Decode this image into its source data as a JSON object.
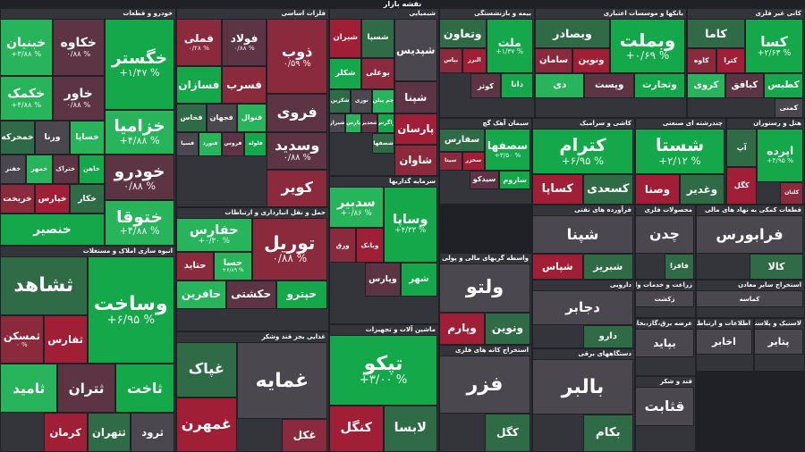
{
  "map_title": "نقشه بازار",
  "colors": {
    "background": "#1f2126",
    "strong_up": "#14a84a",
    "up": "#27b45a",
    "mild_up": "#2f6b47",
    "neutral": "#4a474f",
    "mild_down": "#5c3444",
    "down": "#8b2a3c",
    "strong_down": "#a01f37"
  },
  "chart_data": {
    "type": "heatmap",
    "title": "نقشه بازار",
    "sectors": [
      {
        "name": "خودرو و قطعات",
        "stocks": [
          {
            "symbol": "خگستر",
            "change": "+۱/۴۷ %"
          },
          {
            "symbol": "خکاوه",
            "change": "۰/۸۸ %"
          },
          {
            "symbol": "خبنیان",
            "change": "+۳/۸۸ %"
          },
          {
            "symbol": "خاور",
            "change": "۰/۸۸ %"
          },
          {
            "symbol": "خکمک",
            "change": "+۴/۸۸ %"
          },
          {
            "symbol": "خزامیا",
            "change": "+۴/۸۸ %"
          },
          {
            "symbol": "خساپا",
            "change": ""
          },
          {
            "symbol": "ورنا",
            "change": ""
          },
          {
            "symbol": "خمحرکه",
            "change": ""
          },
          {
            "symbol": "خودرو",
            "change": "۰/۸۸ %"
          },
          {
            "symbol": "ختوقا",
            "change": "+۴/۸۸ %"
          },
          {
            "symbol": "خاهن",
            "change": ""
          },
          {
            "symbol": "ختراک",
            "change": ""
          },
          {
            "symbol": "خمهر",
            "change": ""
          },
          {
            "symbol": "خفنر",
            "change": ""
          },
          {
            "symbol": "خکار",
            "change": ""
          },
          {
            "symbol": "خپارس",
            "change": ""
          },
          {
            "symbol": "خریخت",
            "change": ""
          },
          {
            "symbol": "خنصیر",
            "change": ""
          }
        ]
      },
      {
        "name": "فلزات اساسی",
        "stocks": [
          {
            "symbol": "ذوب",
            "change": "۰/۵۹ %"
          },
          {
            "symbol": "فولاد",
            "change": "۰/۸۸ %"
          },
          {
            "symbol": "فملی",
            "change": "۰/۲۸ %"
          },
          {
            "symbol": "فسرب",
            "change": ""
          },
          {
            "symbol": "فسازان",
            "change": ""
          },
          {
            "symbol": "فروی",
            "change": ""
          },
          {
            "symbol": "فنوال",
            "change": ""
          },
          {
            "symbol": "فجهان",
            "change": ""
          },
          {
            "symbol": "فخاس",
            "change": ""
          },
          {
            "symbol": "وسدید",
            "change": "۰/۸۸ %"
          },
          {
            "symbol": "کویر",
            "change": ""
          },
          {
            "symbol": "فلوله",
            "change": ""
          },
          {
            "symbol": "فروس",
            "change": ""
          },
          {
            "symbol": "فنورد",
            "change": ""
          },
          {
            "symbol": "فسپا",
            "change": ""
          }
        ]
      },
      {
        "name": "شیمیایی",
        "stocks": [
          {
            "symbol": "شپدیس",
            "change": ""
          },
          {
            "symbol": "شسپا",
            "change": ""
          },
          {
            "symbol": "شیران",
            "change": ""
          },
          {
            "symbol": "بوعلی",
            "change": ""
          },
          {
            "symbol": "شکلر",
            "change": ""
          },
          {
            "symbol": "شپنا",
            "change": ""
          },
          {
            "symbol": "جم پیلن",
            "change": ""
          },
          {
            "symbol": "نوری",
            "change": ""
          },
          {
            "symbol": "شکربن",
            "change": ""
          },
          {
            "symbol": "پارسان",
            "change": ""
          },
          {
            "symbol": "شاوان",
            "change": ""
          },
          {
            "symbol": "زاگرس",
            "change": ""
          },
          {
            "symbol": "شغدیر",
            "change": ""
          },
          {
            "symbol": "پارس",
            "change": ""
          },
          {
            "symbol": "شیراز",
            "change": ""
          },
          {
            "symbol": "شصفها",
            "change": ""
          }
        ]
      },
      {
        "name": "بیمه و بازنشستگی",
        "stocks": [
          {
            "symbol": "ملت",
            "change": "+۱/۳۷ %"
          },
          {
            "symbol": "وتعاون",
            "change": ""
          },
          {
            "symbol": "البرز",
            "change": ""
          },
          {
            "symbol": "بپاس",
            "change": ""
          },
          {
            "symbol": "دانا",
            "change": ""
          },
          {
            "symbol": "کوثر",
            "change": ""
          }
        ]
      },
      {
        "name": "بانکها و موسسات اعتباری",
        "stocks": [
          {
            "symbol": "وبملت",
            "change": "+۰/۶۹ %"
          },
          {
            "symbol": "وبصادر",
            "change": ""
          },
          {
            "symbol": "ونوین",
            "change": ""
          },
          {
            "symbol": "سامان",
            "change": ""
          },
          {
            "symbol": "وتجارت",
            "change": ""
          },
          {
            "symbol": "وپست",
            "change": ""
          },
          {
            "symbol": "دی",
            "change": ""
          }
        ]
      },
      {
        "name": "کانی غیر فلزی",
        "stocks": [
          {
            "symbol": "کسا",
            "change": "+۲/۶۳ %"
          },
          {
            "symbol": "کاما",
            "change": ""
          },
          {
            "symbol": "کترا",
            "change": ""
          },
          {
            "symbol": "کاوه",
            "change": ""
          },
          {
            "symbol": "کطبس",
            "change": ""
          },
          {
            "symbol": "کبافق",
            "change": ""
          },
          {
            "symbol": "کروی",
            "change": ""
          },
          {
            "symbol": "کمنی",
            "change": ""
          }
        ]
      },
      {
        "name": "سیمان آهک گچ",
        "stocks": [
          {
            "symbol": "سصفها",
            "change": "+۳/۵۰ %"
          },
          {
            "symbol": "سفارس",
            "change": ""
          },
          {
            "symbol": "سخزر",
            "change": ""
          },
          {
            "symbol": "سیتا",
            "change": ""
          },
          {
            "symbol": "ساروم",
            "change": ""
          },
          {
            "symbol": "سیدکو",
            "change": ""
          }
        ]
      },
      {
        "name": "کاشی و سرامیک",
        "stocks": [
          {
            "symbol": "کترام",
            "change": "+۶/۹۵ %"
          },
          {
            "symbol": "کسعدی",
            "change": ""
          },
          {
            "symbol": "کساپا",
            "change": ""
          }
        ]
      },
      {
        "name": "چندرشته ای صنعتی",
        "stocks": [
          {
            "symbol": "شستا",
            "change": "+۲/۱۲ %"
          },
          {
            "symbol": "وغدیر",
            "change": ""
          },
          {
            "symbol": "وصنا",
            "change": ""
          }
        ]
      },
      {
        "name": "هتل و رستوران",
        "stocks": [
          {
            "symbol": "اپرده",
            "change": "+۴/۹۵ %"
          },
          {
            "symbol": "آپ",
            "change": ""
          },
          {
            "symbol": "کگل",
            "change": ""
          },
          {
            "symbol": "کلتان",
            "change": ""
          }
        ]
      },
      {
        "name": "سرمایه گذاریها",
        "stocks": [
          {
            "symbol": "وساپا",
            "change": "+۴/۳۳ %"
          },
          {
            "symbol": "سدبیر",
            "change": "+۰/۸۶ %"
          },
          {
            "symbol": "وبانک",
            "change": ""
          },
          {
            "symbol": "ورق",
            "change": ""
          },
          {
            "symbol": "شهر",
            "change": ""
          },
          {
            "symbol": "وپارس",
            "change": ""
          }
        ]
      },
      {
        "name": "انبوه سازی املاک و مستغلات",
        "stocks": [
          {
            "symbol": "وساخت",
            "change": "+۶/۹۵ %"
          },
          {
            "symbol": "ثشاهد",
            "change": ""
          },
          {
            "symbol": "ثفارس",
            "change": ""
          },
          {
            "symbol": "ثمسکن",
            "change": "۰ %"
          },
          {
            "symbol": "ثاخت",
            "change": ""
          },
          {
            "symbol": "ثتران",
            "change": ""
          },
          {
            "symbol": "ثامید",
            "change": ""
          },
          {
            "symbol": "ثرود",
            "change": ""
          },
          {
            "symbol": "ثتهران",
            "change": ""
          },
          {
            "symbol": "کرمان",
            "change": ""
          }
        ]
      },
      {
        "name": "حمل و نقل انبارداری و ارتباطات",
        "stocks": [
          {
            "symbol": "توریل",
            "change": "۰/۸۸ %"
          },
          {
            "symbol": "حفارس",
            "change": "+۰/۳۰ %"
          },
          {
            "symbol": "حسا",
            "change": "+۶/۸۹ %"
          },
          {
            "symbol": "حتاید",
            "change": ""
          },
          {
            "symbol": "حپترو",
            "change": ""
          },
          {
            "symbol": "حکشتی",
            "change": ""
          },
          {
            "symbol": "حافرین",
            "change": ""
          }
        ]
      },
      {
        "name": "غذایی بجز قند وشکر",
        "stocks": [
          {
            "symbol": "غمایه",
            "change": ""
          },
          {
            "symbol": "غپاک",
            "change": ""
          },
          {
            "symbol": "غمهرن",
            "change": ""
          },
          {
            "symbol": "غکل",
            "change": ""
          }
        ]
      },
      {
        "name": "ماشین آلات و تجهیزات",
        "stocks": [
          {
            "symbol": "تپکو",
            "change": "+۳/۰۰ %"
          },
          {
            "symbol": "لابسا",
            "change": ""
          },
          {
            "symbol": "کنگل",
            "change": ""
          }
        ]
      },
      {
        "name": "واسطه گریهای مالی و پولی",
        "stocks": [
          {
            "symbol": "ولتو",
            "change": ""
          },
          {
            "symbol": "ونوین",
            "change": ""
          },
          {
            "symbol": "وپارم",
            "change": ""
          }
        ]
      },
      {
        "name": "فرآورده های نفتی",
        "stocks": [
          {
            "symbol": "شپنا",
            "change": ""
          },
          {
            "symbol": "شبریز",
            "change": ""
          },
          {
            "symbol": "شپاس",
            "change": ""
          }
        ]
      },
      {
        "name": "محصولات فلزی",
        "stocks": [
          {
            "symbol": "چدن",
            "change": ""
          },
          {
            "symbol": "فافزا",
            "change": ""
          }
        ]
      },
      {
        "name": "قطعات کمکی به نهاد های مالی",
        "stocks": [
          {
            "symbol": "فرابورس",
            "change": ""
          },
          {
            "symbol": "کالا",
            "change": ""
          }
        ]
      },
      {
        "name": "دارویی",
        "stocks": [
          {
            "symbol": "دجابر",
            "change": ""
          },
          {
            "symbol": "دارو",
            "change": ""
          }
        ]
      },
      {
        "name": "زراعت و خدمات وابسته",
        "stocks": [
          {
            "symbol": "زکشت",
            "change": ""
          }
        ]
      },
      {
        "name": "استخراج سایر معادن",
        "stocks": [
          {
            "symbol": "کماسه",
            "change": ""
          }
        ]
      },
      {
        "name": "اطلاعات و ارتباطات",
        "stocks": [
          {
            "symbol": "اخابر",
            "change": ""
          }
        ]
      },
      {
        "name": "استخراج کانه های فلزی",
        "stocks": [
          {
            "symbol": "فزر",
            "change": ""
          },
          {
            "symbol": "کگل",
            "change": ""
          }
        ]
      },
      {
        "name": "دستگاههای برقی",
        "stocks": [
          {
            "symbol": "بالبر",
            "change": ""
          },
          {
            "symbol": "بکام",
            "change": ""
          }
        ]
      },
      {
        "name": "عرضه برق،گاز،بخار و آب گرم",
        "stocks": [
          {
            "symbol": "بپاید",
            "change": ""
          }
        ]
      },
      {
        "name": "قند و شکر",
        "stocks": [
          {
            "symbol": "قثابت",
            "change": ""
          }
        ]
      },
      {
        "name": "لاستیک و پلاستیک",
        "stocks": [
          {
            "symbol": "پتایر",
            "change": ""
          }
        ]
      }
    ]
  }
}
